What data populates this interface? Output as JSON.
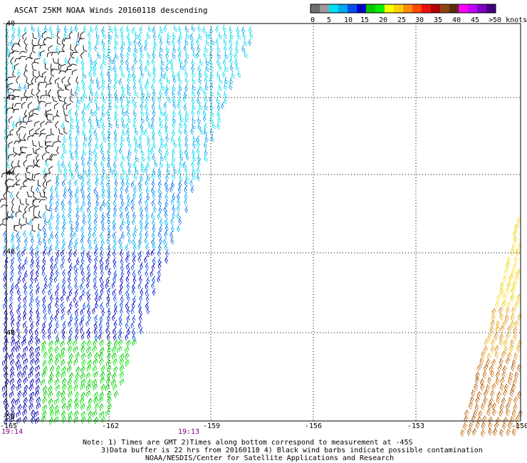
{
  "title": "ASCAT 25KM NOAA Winds 20160118 descending",
  "color_scale": {
    "labels": [
      "0",
      "5",
      "10",
      "15",
      "20",
      "25",
      "30",
      "35",
      "40",
      "45",
      ">50 knots"
    ],
    "colors": [
      "#6e6e6e",
      "#9a9a9a",
      "#00e0f0",
      "#00a8f0",
      "#0050f0",
      "#0000c8",
      "#00c800",
      "#00f000",
      "#ffff00",
      "#ffd000",
      "#ff8c00",
      "#ff4800",
      "#e81010",
      "#b00000",
      "#8b4513",
      "#5a2d0c",
      "#ff00ff",
      "#c000ff",
      "#8000c0",
      "#400080"
    ]
  },
  "axes": {
    "lat_labels": [
      "-40",
      "-42",
      "-44",
      "-46",
      "-48",
      "-50"
    ],
    "lon_labels": [
      "-165",
      "-162",
      "-159",
      "-156",
      "-153",
      "-150"
    ]
  },
  "times": [
    "19:14",
    "19:13"
  ],
  "notes": {
    "line1": "Note: 1) Times are GMT 2)Times along bottom correspond to measurement at -45S",
    "line2": "3)Data buffer is 22 hrs from 20160118 4) Black wind barbs indicate possible contamination",
    "line3": "NOAA/NESDIS/Center for Satellite Applications and Research"
  }
}
